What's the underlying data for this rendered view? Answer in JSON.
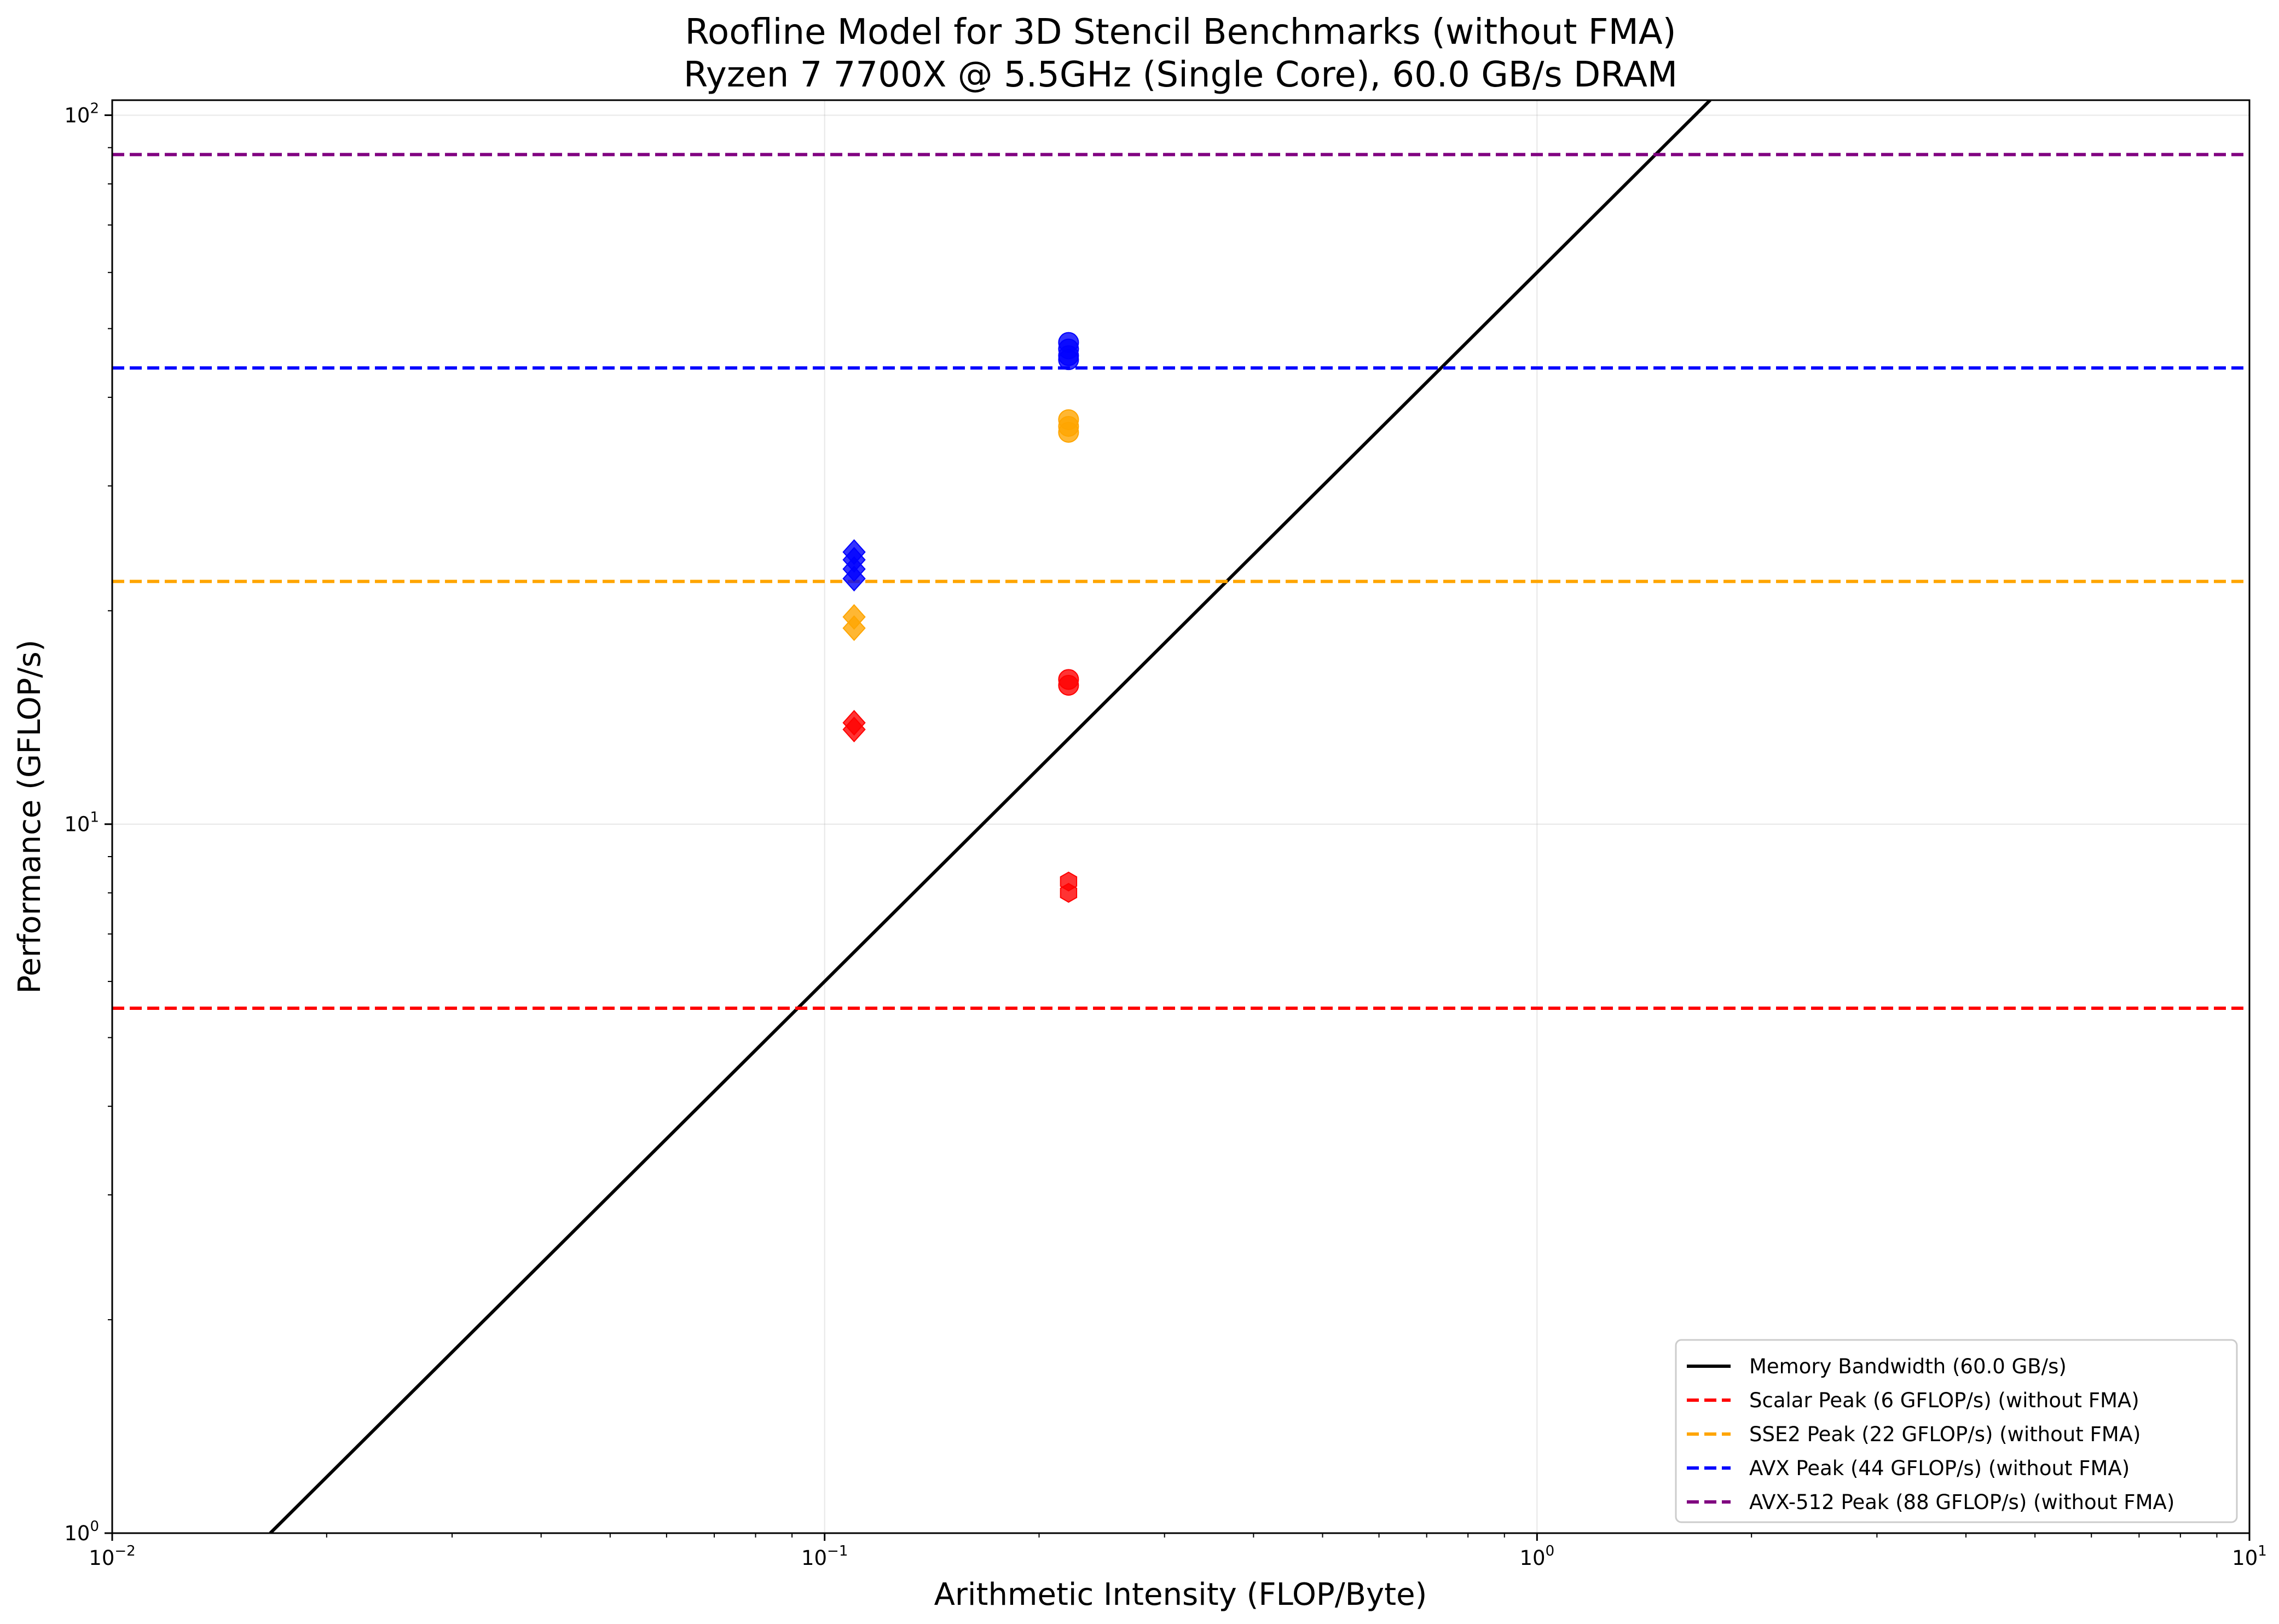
{
  "chart_data": {
    "type": "scatter",
    "title": "Roofline Model for 3D Stencil Benchmarks (without FMA)",
    "subtitle": "Ryzen 7 7700X @ 5.5GHz (Single Core), 60.0 GB/s DRAM",
    "xlabel": "Arithmetic Intensity (FLOP/Byte)",
    "ylabel": "Performance (GFLOP/s)",
    "xscale": "log",
    "yscale": "log",
    "xlim": [
      0.01,
      10
    ],
    "ylim": [
      1,
      105
    ],
    "grid": true,
    "legend_position": "lower right",
    "x_ticks": [
      {
        "value": 0.01,
        "base": "10",
        "exp": "−2"
      },
      {
        "value": 0.1,
        "base": "10",
        "exp": "−1"
      },
      {
        "value": 1,
        "base": "10",
        "exp": "0"
      },
      {
        "value": 10,
        "base": "10",
        "exp": "1"
      }
    ],
    "y_ticks": [
      {
        "value": 1,
        "base": "10",
        "exp": "0"
      },
      {
        "value": 10,
        "base": "10",
        "exp": "1"
      },
      {
        "value": 100,
        "base": "10",
        "exp": "2"
      }
    ],
    "lines": [
      {
        "name": "Memory Bandwidth (60.0 GB/s)",
        "kind": "bandwidth",
        "slope": 60.0,
        "color": "#000000",
        "dash": "solid"
      },
      {
        "name": "Scalar Peak (6 GFLOP/s) (without FMA)",
        "kind": "peak",
        "y": 5.5,
        "color": "#ff0000",
        "dash": "dashed"
      },
      {
        "name": "SSE2 Peak (22 GFLOP/s) (without FMA)",
        "kind": "peak",
        "y": 22,
        "color": "#ffa500",
        "dash": "dashed"
      },
      {
        "name": "AVX Peak (44 GFLOP/s) (without FMA)",
        "kind": "peak",
        "y": 44,
        "color": "#0000ff",
        "dash": "dashed"
      },
      {
        "name": "AVX-512 Peak (88 GFLOP/s) (without FMA)",
        "kind": "peak",
        "y": 88,
        "color": "#800080",
        "dash": "dashed"
      }
    ],
    "points": [
      {
        "x": 0.11,
        "y": 24.2,
        "color": "#0000ff",
        "marker": "diamond"
      },
      {
        "x": 0.11,
        "y": 23.6,
        "color": "#0000ff",
        "marker": "diamond"
      },
      {
        "x": 0.11,
        "y": 22.9,
        "color": "#0000ff",
        "marker": "diamond"
      },
      {
        "x": 0.11,
        "y": 22.2,
        "color": "#0000ff",
        "marker": "diamond"
      },
      {
        "x": 0.11,
        "y": 19.6,
        "color": "#ffa500",
        "marker": "diamond"
      },
      {
        "x": 0.11,
        "y": 18.9,
        "color": "#ffa500",
        "marker": "diamond"
      },
      {
        "x": 0.11,
        "y": 13.9,
        "color": "#ff0000",
        "marker": "diamond"
      },
      {
        "x": 0.11,
        "y": 13.6,
        "color": "#ff0000",
        "marker": "diamond"
      },
      {
        "x": 0.22,
        "y": 47.8,
        "color": "#0000ff",
        "marker": "circle"
      },
      {
        "x": 0.22,
        "y": 46.8,
        "color": "#0000ff",
        "marker": "circle"
      },
      {
        "x": 0.22,
        "y": 45.8,
        "color": "#0000ff",
        "marker": "circle"
      },
      {
        "x": 0.22,
        "y": 45.2,
        "color": "#0000ff",
        "marker": "circle"
      },
      {
        "x": 0.22,
        "y": 37.2,
        "color": "#ffa500",
        "marker": "circle"
      },
      {
        "x": 0.22,
        "y": 36.4,
        "color": "#ffa500",
        "marker": "circle"
      },
      {
        "x": 0.22,
        "y": 35.7,
        "color": "#ffa500",
        "marker": "circle"
      },
      {
        "x": 0.22,
        "y": 16.0,
        "color": "#ff0000",
        "marker": "circle"
      },
      {
        "x": 0.22,
        "y": 15.7,
        "color": "#ff0000",
        "marker": "circle"
      },
      {
        "x": 0.22,
        "y": 8.3,
        "color": "#ff0000",
        "marker": "hexagon"
      },
      {
        "x": 0.22,
        "y": 8.0,
        "color": "#ff0000",
        "marker": "hexagon"
      }
    ]
  }
}
